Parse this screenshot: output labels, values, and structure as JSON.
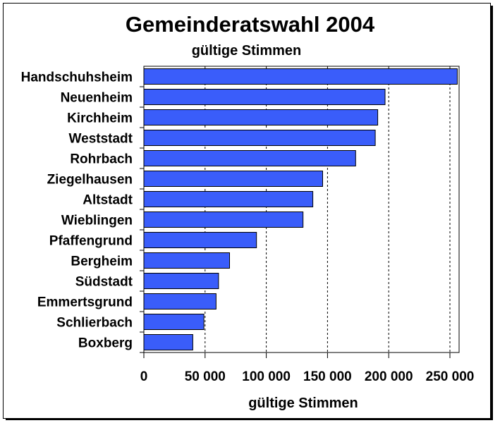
{
  "chart_data": {
    "type": "bar",
    "orientation": "horizontal",
    "title": "Gemeinderatswahl 2004",
    "subtitle": "gültige Stimmen",
    "xlabel": "gültige Stimmen",
    "ylabel": "",
    "categories": [
      "Handschuhsheim",
      "Neuenheim",
      "Kirchheim",
      "Weststadt",
      "Rohrbach",
      "Ziegelhausen",
      "Altstadt",
      "Wieblingen",
      "Pfaffengrund",
      "Bergheim",
      "Südstadt",
      "Emmertsgrund",
      "Schlierbach",
      "Boxberg"
    ],
    "values": [
      256000,
      197000,
      191000,
      189000,
      173000,
      146000,
      138000,
      130000,
      92000,
      70000,
      61000,
      59000,
      49000,
      40000
    ],
    "xlim": [
      0,
      250000
    ],
    "xticks": [
      0,
      50000,
      100000,
      150000,
      200000,
      250000
    ],
    "xtick_labels": [
      "0",
      "50 000",
      "100 000",
      "150 000",
      "200 000",
      "250 000"
    ],
    "grid": "vertical dashed",
    "legend": "none",
    "colors": {
      "bar_fill": "#3a5dfa",
      "bar_stroke": "#000000",
      "background": "#ffffff"
    }
  }
}
